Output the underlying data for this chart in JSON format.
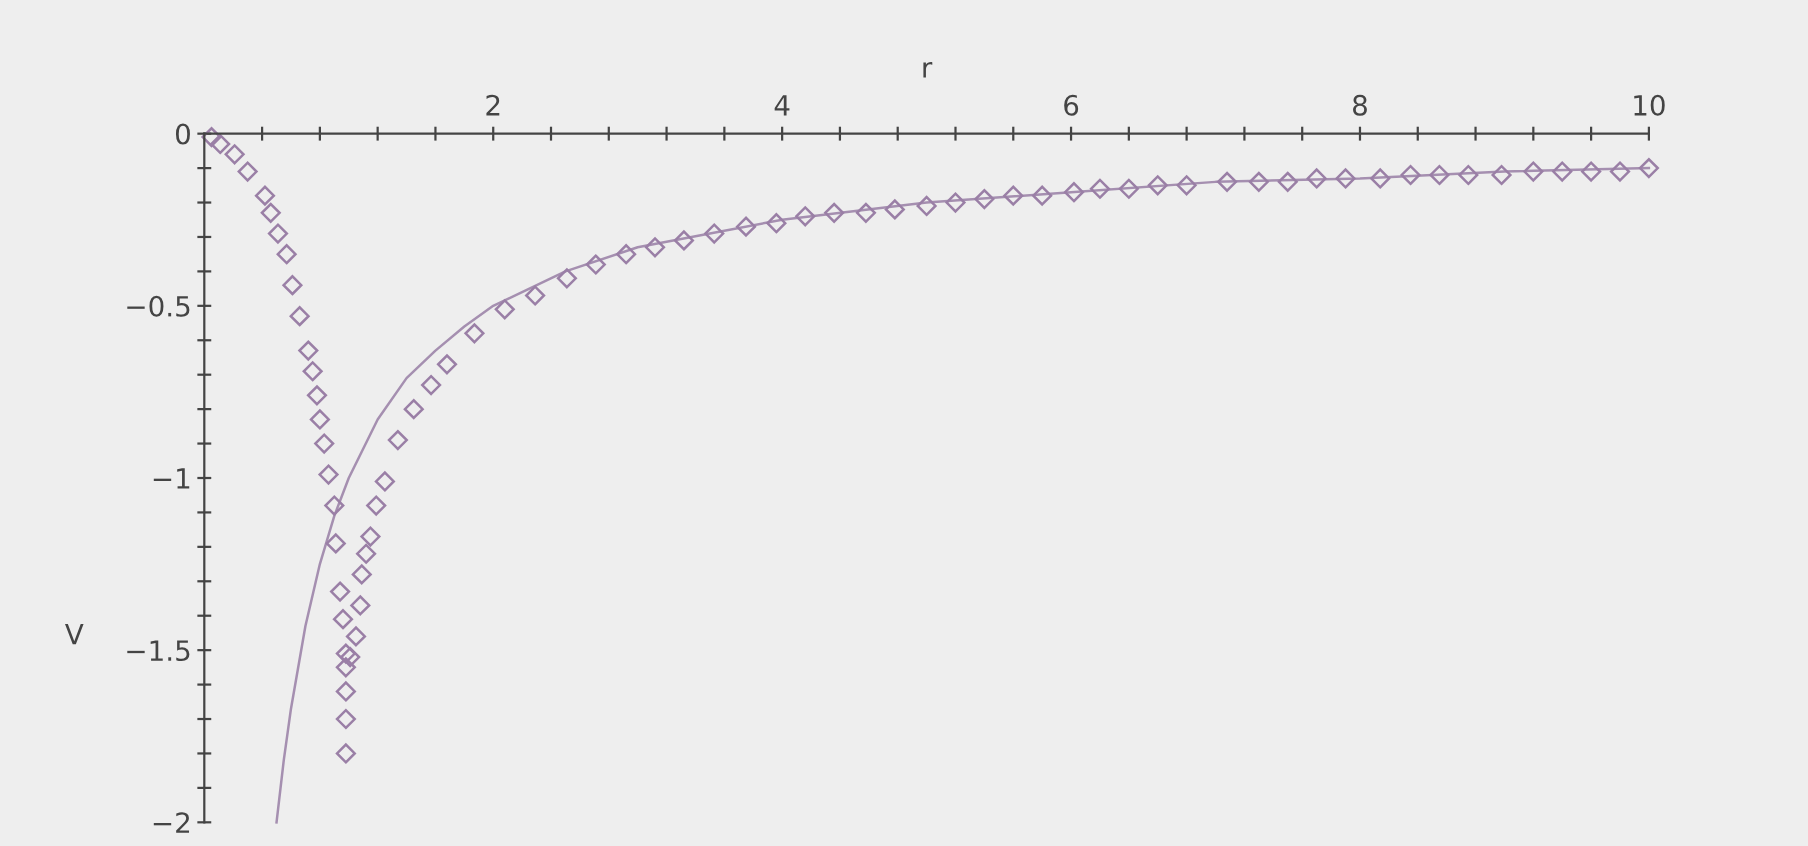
{
  "chart_data": {
    "type": "line",
    "xlabel": "r",
    "ylabel": "V",
    "xlim": [
      0,
      10
    ],
    "ylim": [
      -2,
      0
    ],
    "xticks": [
      {
        "value": 0.4,
        "label": null
      },
      {
        "value": 0.8,
        "label": null
      },
      {
        "value": 1.2,
        "label": null
      },
      {
        "value": 1.6,
        "label": null
      },
      2,
      {
        "value": 2.4,
        "label": null
      },
      {
        "value": 2.8,
        "label": null
      },
      {
        "value": 3.2,
        "label": null
      },
      {
        "value": 3.6,
        "label": null
      },
      4,
      {
        "value": 4.4,
        "label": null
      },
      {
        "value": 4.8,
        "label": null
      },
      {
        "value": 5.2,
        "label": null
      },
      {
        "value": 5.6,
        "label": null
      },
      6,
      {
        "value": 6.4,
        "label": null
      },
      {
        "value": 6.8,
        "label": null
      },
      {
        "value": 7.2,
        "label": null
      },
      {
        "value": 7.6,
        "label": null
      },
      8,
      {
        "value": 8.4,
        "label": null
      },
      {
        "value": 8.8,
        "label": null
      },
      {
        "value": 9.2,
        "label": null
      },
      {
        "value": 9.6,
        "label": null
      },
      10
    ],
    "yticks": [
      -2,
      {
        "value": -1.9,
        "label": null
      },
      {
        "value": -1.8,
        "label": null
      },
      {
        "value": -1.7,
        "label": null
      },
      {
        "value": -1.6,
        "label": null
      },
      -1.5,
      {
        "value": -1.4,
        "label": null
      },
      {
        "value": -1.3,
        "label": null
      },
      {
        "value": -1.2,
        "label": null
      },
      {
        "value": -1.1,
        "label": null
      },
      -1,
      {
        "value": -0.9,
        "label": null
      },
      {
        "value": -0.8,
        "label": null
      },
      {
        "value": -0.7,
        "label": null
      },
      {
        "value": -0.6,
        "label": null
      },
      -0.5,
      {
        "value": -0.4,
        "label": null
      },
      {
        "value": -0.3,
        "label": null
      },
      {
        "value": -0.2,
        "label": null
      },
      {
        "value": -0.1,
        "label": null
      },
      0
    ],
    "grid": false,
    "legend": false,
    "series": [
      {
        "color": "#a58fb0",
        "line_style": "solid",
        "marker": "none",
        "x": [
          0.5,
          0.55,
          0.6,
          0.7,
          0.8,
          0.9,
          1,
          1.2,
          1.4,
          1.6,
          1.8,
          2,
          2.5,
          3,
          3.5,
          4,
          5,
          6,
          7,
          8,
          9,
          10
        ],
        "values": [
          -2,
          -1.82,
          -1.67,
          -1.43,
          -1.25,
          -1.11,
          -1,
          -0.83,
          -0.71,
          -0.63,
          -0.56,
          -0.5,
          -0.4,
          -0.33,
          -0.29,
          -0.25,
          -0.2,
          -0.17,
          -0.14,
          -0.13,
          -0.11,
          -0.1
        ]
      },
      {
        "type": "scatter",
        "color": "#9a7fa6",
        "marker": "diamond",
        "x": [
          0.05,
          0.11,
          0.21,
          0.3,
          0.42,
          0.46,
          0.51,
          0.57,
          0.61,
          0.66,
          0.72,
          0.75,
          0.78,
          0.8,
          0.83,
          0.86,
          0.9,
          0.91,
          0.94,
          0.96,
          0.98,
          0.98,
          0.98,
          0.98,
          0.98,
          1.01,
          1.05,
          1.08,
          1.09,
          1.12,
          1.15,
          1.19,
          1.25,
          1.34,
          1.45,
          1.57,
          1.68,
          1.87,
          2.08,
          2.29,
          2.51,
          2.71,
          2.92,
          3.12,
          3.32,
          3.53,
          3.75,
          3.96,
          4.16,
          4.36,
          4.58,
          4.78,
          5.0,
          5.2,
          5.4,
          5.6,
          5.8,
          6.02,
          6.2,
          6.4,
          6.6,
          6.8,
          7.08,
          7.3,
          7.5,
          7.7,
          7.9,
          8.14,
          8.35,
          8.55,
          8.75,
          8.98,
          9.2,
          9.4,
          9.6,
          9.8,
          10
        ],
        "values": [
          -0.01,
          -0.03,
          -0.06,
          -0.11,
          -0.18,
          -0.23,
          -0.29,
          -0.35,
          -0.44,
          -0.53,
          -0.63,
          -0.69,
          -0.76,
          -0.83,
          -0.9,
          -0.99,
          -1.08,
          -1.19,
          -1.33,
          -1.41,
          -1.51,
          -1.55,
          -1.62,
          -1.7,
          -1.8,
          -1.52,
          -1.46,
          -1.37,
          -1.28,
          -1.22,
          -1.17,
          -1.08,
          -1.01,
          -0.89,
          -0.8,
          -0.73,
          -0.67,
          -0.58,
          -0.51,
          -0.47,
          -0.42,
          -0.38,
          -0.35,
          -0.33,
          -0.31,
          -0.29,
          -0.27,
          -0.26,
          -0.24,
          -0.23,
          -0.23,
          -0.22,
          -0.21,
          -0.2,
          -0.19,
          -0.18,
          -0.18,
          -0.17,
          -0.16,
          -0.16,
          -0.15,
          -0.15,
          -0.14,
          -0.14,
          -0.14,
          -0.13,
          -0.13,
          -0.13,
          -0.12,
          -0.12,
          -0.12,
          -0.12,
          -0.11,
          -0.11,
          -0.11,
          -0.11,
          -0.1
        ]
      }
    ]
  }
}
